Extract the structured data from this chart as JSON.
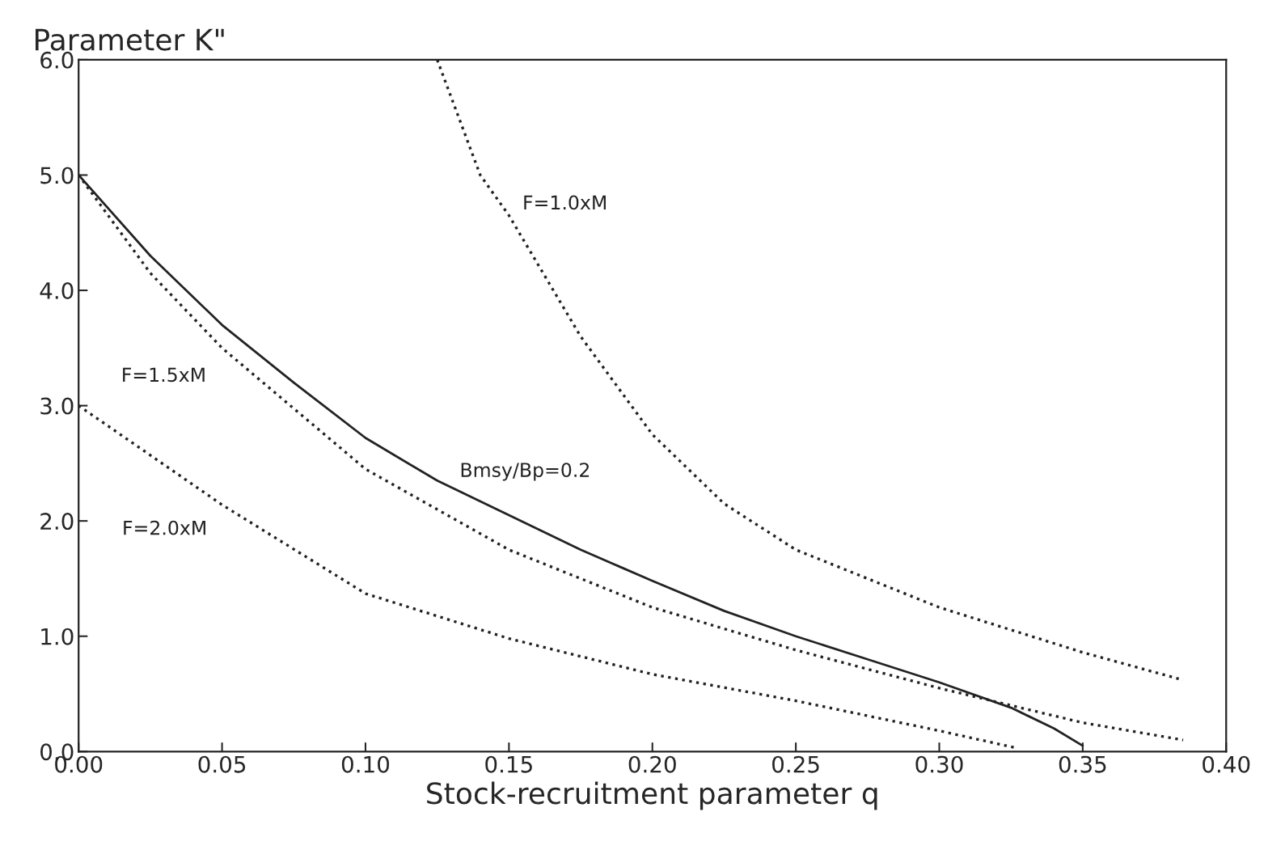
{
  "chart_data": {
    "type": "line",
    "ylabel": "Parameter K\"",
    "xlabel": "Stock-recruitment parameter q",
    "xlim": [
      0,
      0.4
    ],
    "ylim": [
      0,
      6
    ],
    "xticks": [
      {
        "value": 0,
        "label": "0.00"
      },
      {
        "value": 0.05,
        "label": "0.05"
      },
      {
        "value": 0.1,
        "label": "0.10"
      },
      {
        "value": 0.15,
        "label": "0.15"
      },
      {
        "value": 0.2,
        "label": "0.20"
      },
      {
        "value": 0.25,
        "label": "0.25"
      },
      {
        "value": 0.3,
        "label": "0.30"
      },
      {
        "value": 0.35,
        "label": "0.35"
      },
      {
        "value": 0.4,
        "label": "0.40"
      }
    ],
    "yticks": [
      {
        "value": 0,
        "label": "0.0"
      },
      {
        "value": 1,
        "label": "1.0"
      },
      {
        "value": 2,
        "label": "2.0"
      },
      {
        "value": 3,
        "label": "3.0"
      },
      {
        "value": 4,
        "label": "4.0"
      },
      {
        "value": 5,
        "label": "5.0"
      },
      {
        "value": 6,
        "label": "6.0"
      }
    ],
    "grid": false,
    "legend": false,
    "marker": "none",
    "series": [
      {
        "name": "Bmsy/Bp=0.2",
        "color": "#222222",
        "line_style": "solid",
        "x": [
          0,
          0.025,
          0.05,
          0.075,
          0.1,
          0.125,
          0.15,
          0.175,
          0.2,
          0.225,
          0.25,
          0.275,
          0.3,
          0.325,
          0.34,
          0.35
        ],
        "values": [
          5.0,
          4.3,
          3.7,
          3.2,
          2.72,
          2.35,
          2.05,
          1.75,
          1.48,
          1.22,
          1.0,
          0.8,
          0.6,
          0.38,
          0.2,
          0.05
        ]
      },
      {
        "name": "F=1.0xM",
        "color": "#222222",
        "line_style": "dotted",
        "x": [
          0.125,
          0.14,
          0.15,
          0.175,
          0.2,
          0.225,
          0.25,
          0.3,
          0.35,
          0.385
        ],
        "values": [
          6.0,
          5.0,
          4.65,
          3.6,
          2.75,
          2.15,
          1.75,
          1.25,
          0.86,
          0.62
        ]
      },
      {
        "name": "F=1.5xM",
        "color": "#222222",
        "line_style": "dotted",
        "x": [
          0,
          0.025,
          0.05,
          0.1,
          0.15,
          0.2,
          0.25,
          0.3,
          0.35,
          0.385
        ],
        "values": [
          5.0,
          4.15,
          3.5,
          2.45,
          1.75,
          1.25,
          0.88,
          0.55,
          0.25,
          0.1
        ]
      },
      {
        "name": "F=2.0xM",
        "color": "#222222",
        "line_style": "dotted",
        "x": [
          0,
          0.05,
          0.1,
          0.15,
          0.2,
          0.25,
          0.3,
          0.327
        ],
        "values": [
          3.0,
          2.14,
          1.37,
          0.98,
          0.67,
          0.44,
          0.18,
          0.03
        ]
      }
    ]
  }
}
